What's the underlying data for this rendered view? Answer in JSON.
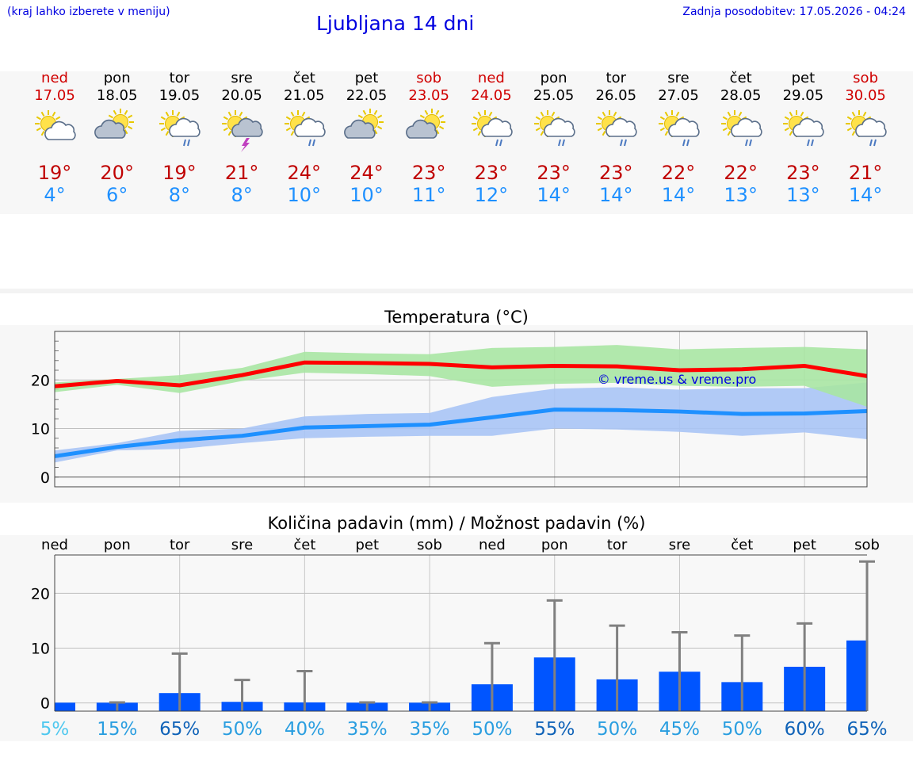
{
  "header": {
    "left_note": "(kraj lahko izberete v meniju)",
    "title": "Ljubljana 14 dni",
    "updated": "Zadnja posodobitev: 17.05.2026 - 04:24"
  },
  "days": [
    {
      "name": "ned",
      "date": "17.05",
      "weekend": true,
      "icon": "partly-cloudy-sun-icon",
      "tmax": "19°",
      "tmin": "4°"
    },
    {
      "name": "pon",
      "date": "18.05",
      "weekend": false,
      "icon": "sun-behind-cloud-icon",
      "tmax": "20°",
      "tmin": "6°"
    },
    {
      "name": "tor",
      "date": "19.05",
      "weekend": false,
      "icon": "sun-cloud-rain-icon",
      "tmax": "19°",
      "tmin": "8°"
    },
    {
      "name": "sre",
      "date": "20.05",
      "weekend": false,
      "icon": "sun-cloud-thunder-icon",
      "tmax": "21°",
      "tmin": "8°"
    },
    {
      "name": "čet",
      "date": "21.05",
      "weekend": false,
      "icon": "sun-cloud-rain-icon",
      "tmax": "24°",
      "tmin": "10°"
    },
    {
      "name": "pet",
      "date": "22.05",
      "weekend": false,
      "icon": "sun-behind-cloud-icon",
      "tmax": "24°",
      "tmin": "10°"
    },
    {
      "name": "sob",
      "date": "23.05",
      "weekend": true,
      "icon": "sun-behind-cloud-icon",
      "tmax": "23°",
      "tmin": "11°"
    },
    {
      "name": "ned",
      "date": "24.05",
      "weekend": true,
      "icon": "sun-cloud-rain-icon",
      "tmax": "23°",
      "tmin": "12°"
    },
    {
      "name": "pon",
      "date": "25.05",
      "weekend": false,
      "icon": "sun-cloud-rain-icon",
      "tmax": "23°",
      "tmin": "14°"
    },
    {
      "name": "tor",
      "date": "26.05",
      "weekend": false,
      "icon": "sun-cloud-rain-icon",
      "tmax": "23°",
      "tmin": "14°"
    },
    {
      "name": "sre",
      "date": "27.05",
      "weekend": false,
      "icon": "sun-cloud-rain-icon",
      "tmax": "22°",
      "tmin": "14°"
    },
    {
      "name": "čet",
      "date": "28.05",
      "weekend": false,
      "icon": "sun-cloud-rain-icon",
      "tmax": "22°",
      "tmin": "13°"
    },
    {
      "name": "pet",
      "date": "29.05",
      "weekend": false,
      "icon": "sun-cloud-rain-icon",
      "tmax": "23°",
      "tmin": "13°"
    },
    {
      "name": "sob",
      "date": "30.05",
      "weekend": true,
      "icon": "sun-cloud-rain-icon",
      "tmax": "21°",
      "tmin": "14°"
    }
  ],
  "chart_data": [
    {
      "type": "line",
      "title": "Temperatura (°C)",
      "watermark": "© vreme.us & vreme.pro",
      "ylim": [
        -2,
        30
      ],
      "yticks": [
        0,
        10,
        20
      ],
      "grid": true,
      "colors": {
        "max": "#ff0000",
        "min": "#1e90ff",
        "max_band": "#a8e6a3",
        "min_band": "#a9c4f5"
      },
      "series": [
        {
          "values": [
            18.7,
            19.8,
            18.9,
            21.0,
            23.6,
            23.5,
            23.3,
            22.6,
            22.9,
            22.8,
            22.0,
            22.2,
            22.9,
            20.8
          ]
        },
        {
          "values": [
            4.3,
            6.2,
            7.6,
            8.5,
            10.2,
            10.5,
            10.8,
            12.3,
            13.9,
            13.8,
            13.5,
            13.0,
            13.1,
            13.6
          ]
        }
      ],
      "max_band_lower": [
        17.5,
        19.0,
        17.3,
        19.8,
        21.5,
        21.2,
        20.8,
        18.6,
        19.2,
        19.4,
        18.8,
        18.6,
        18.8,
        14.5
      ],
      "max_band_upper": [
        19.5,
        20.2,
        21.0,
        22.5,
        25.8,
        25.5,
        25.3,
        26.6,
        26.8,
        27.2,
        26.3,
        26.6,
        26.8,
        26.3
      ],
      "min_band_lower": [
        3.0,
        5.5,
        5.8,
        7.0,
        8.0,
        8.3,
        8.5,
        8.5,
        10.0,
        9.8,
        9.3,
        8.5,
        9.2,
        7.8
      ],
      "min_band_upper": [
        5.5,
        7.0,
        9.5,
        10.0,
        12.5,
        13.0,
        13.2,
        16.5,
        18.2,
        18.5,
        18.0,
        18.3,
        18.3,
        19.5
      ]
    },
    {
      "type": "bar",
      "title": "Količina padavin (mm) / Možnost padavin (%)",
      "categories": [
        "ned",
        "pon",
        "tor",
        "sre",
        "čet",
        "pet",
        "sob",
        "ned",
        "pon",
        "tor",
        "sre",
        "čet",
        "pet",
        "sob"
      ],
      "ylim": [
        -1.5,
        27
      ],
      "yticks": [
        0,
        10,
        20
      ],
      "grid": true,
      "colors": {
        "bar": "#0055ff",
        "error": "#808080"
      },
      "values": [
        0,
        0,
        1.8,
        0.2,
        0.1,
        0,
        0,
        3.4,
        8.3,
        4.3,
        5.7,
        3.8,
        6.6,
        11.4
      ],
      "upper": [
        0,
        0.1,
        9.0,
        4.2,
        5.8,
        0.1,
        0.1,
        10.9,
        18.7,
        14.1,
        12.9,
        12.3,
        14.5,
        25.8
      ],
      "chance": [
        "5%",
        "15%",
        "65%",
        "50%",
        "40%",
        "35%",
        "35%",
        "50%",
        "55%",
        "50%",
        "45%",
        "50%",
        "60%",
        "65%"
      ],
      "chance_colors": [
        "#4fc8ef",
        "#2a9ee0",
        "#1063b8",
        "#2a9ee0",
        "#2a9ee0",
        "#2a9ee0",
        "#2a9ee0",
        "#2a9ee0",
        "#1063b8",
        "#2a9ee0",
        "#2a9ee0",
        "#2a9ee0",
        "#1063b8",
        "#1063b8"
      ]
    }
  ]
}
